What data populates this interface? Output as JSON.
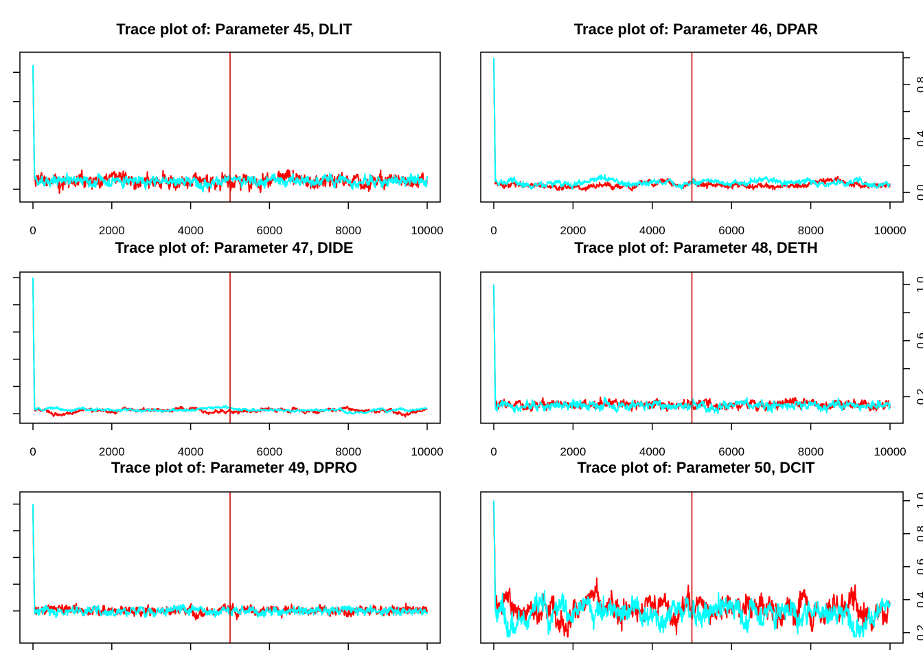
{
  "colors": {
    "chain1": "#ff0000",
    "chain2": "#00ffff",
    "vline": "#cc0000",
    "axis": "#000000"
  },
  "chart_data": [
    {
      "type": "line",
      "title": "Trace plot of: Parameter 45, DLIT",
      "xlim": [
        0,
        10000
      ],
      "ylim": [
        -0.05,
        0.9
      ],
      "xticks": [
        0,
        2000,
        4000,
        6000,
        8000,
        10000
      ],
      "xtick_labels": [
        "0",
        "2000",
        "4000",
        "6000",
        "8000",
        "10000"
      ],
      "yticks": [
        0,
        0.2,
        0.4,
        0.6,
        0.8
      ],
      "ytick_labels": [
        "",
        "",
        "",
        "",
        ""
      ],
      "ytick_side": "left",
      "vline": 5000,
      "start": 0.85,
      "series": [
        {
          "color": "chain1",
          "mean": 0.06,
          "noise": 0.045,
          "smooth": 0.15
        },
        {
          "color": "chain2",
          "mean": 0.06,
          "noise": 0.035,
          "smooth": 0.15
        }
      ]
    },
    {
      "type": "line",
      "title": "Trace plot of: Parameter 46, DPAR",
      "xlim": [
        0,
        10000
      ],
      "ylim": [
        -0.03,
        1.0
      ],
      "xticks": [
        0,
        2000,
        4000,
        6000,
        8000,
        10000
      ],
      "xtick_labels": [
        "0",
        "2000",
        "4000",
        "6000",
        "8000",
        "10000"
      ],
      "yticks": [
        0,
        0.2,
        0.4,
        0.6,
        0.8,
        1.0
      ],
      "ytick_labels": [
        "0.0",
        "",
        "0.4",
        "",
        "0.8",
        ""
      ],
      "ytick_side": "right",
      "vline": 5000,
      "start": 1.0,
      "series": [
        {
          "color": "chain1",
          "mean": 0.06,
          "noise": 0.02,
          "smooth": 0.03
        },
        {
          "color": "chain2",
          "mean": 0.075,
          "noise": 0.02,
          "smooth": 0.05
        }
      ]
    },
    {
      "type": "line",
      "title": "Trace plot of: Parameter 47, DIDE",
      "xlim": [
        0,
        10000
      ],
      "ylim": [
        -0.03,
        1.0
      ],
      "xticks": [
        0,
        2000,
        4000,
        6000,
        8000,
        10000
      ],
      "xtick_labels": [
        "0",
        "2000",
        "4000",
        "6000",
        "8000",
        "10000"
      ],
      "yticks": [
        0,
        0.2,
        0.4,
        0.6,
        0.8,
        1.0
      ],
      "ytick_labels": [
        "",
        "",
        "",
        "",
        "",
        ""
      ],
      "ytick_side": "left",
      "vline": 5000,
      "start": 1.0,
      "series": [
        {
          "color": "chain1",
          "mean": 0.03,
          "noise": 0.012,
          "smooth": 0.03
        },
        {
          "color": "chain2",
          "mean": 0.03,
          "noise": 0.01,
          "smooth": 0.03
        }
      ]
    },
    {
      "type": "line",
      "title": "Trace plot of: Parameter 48, DETH",
      "xlim": [
        0,
        10000
      ],
      "ylim": [
        0.05,
        1.05
      ],
      "xticks": [
        0,
        2000,
        4000,
        6000,
        8000,
        10000
      ],
      "xtick_labels": [
        "0",
        "2000",
        "4000",
        "6000",
        "8000",
        "10000"
      ],
      "yticks": [
        0.2,
        0.4,
        0.6,
        0.8,
        1.0
      ],
      "ytick_labels": [
        "0.2",
        "",
        "0.6",
        "",
        "1.0"
      ],
      "ytick_side": "right",
      "vline": 5000,
      "start": 1.0,
      "series": [
        {
          "color": "chain1",
          "mean": 0.145,
          "noise": 0.03,
          "smooth": 0.15
        },
        {
          "color": "chain2",
          "mean": 0.14,
          "noise": 0.03,
          "smooth": 0.15
        }
      ]
    },
    {
      "type": "line",
      "title": "Trace plot of: Parameter 49, DPRO",
      "xlim": [
        0,
        10000
      ],
      "ylim": [
        0.0,
        1.05
      ],
      "xticks": [
        0,
        2000,
        4000,
        6000,
        8000,
        10000
      ],
      "xtick_labels": [
        "",
        "",
        "",
        "",
        "",
        ""
      ],
      "yticks": [
        0.2,
        0.4,
        0.6,
        0.8,
        1.0
      ],
      "ytick_labels": [
        "",
        "",
        "",
        "",
        ""
      ],
      "ytick_side": "left",
      "vline": 5000,
      "start": 1.0,
      "series": [
        {
          "color": "chain1",
          "mean": 0.205,
          "noise": 0.035,
          "smooth": 0.15
        },
        {
          "color": "chain2",
          "mean": 0.2,
          "noise": 0.03,
          "smooth": 0.15
        }
      ]
    },
    {
      "type": "line",
      "title": "Trace plot of: Parameter 50, DCIT",
      "xlim": [
        0,
        10000
      ],
      "ylim": [
        0.17,
        1.02
      ],
      "xticks": [
        0,
        2000,
        4000,
        6000,
        8000,
        10000
      ],
      "xtick_labels": [
        "",
        "",
        "",
        "",
        "",
        ""
      ],
      "yticks": [
        0.2,
        0.4,
        0.6,
        0.8,
        1.0
      ],
      "ytick_labels": [
        "0.2",
        "0.4",
        "0.6",
        "0.8",
        "1.0"
      ],
      "ytick_side": "right",
      "vline": 5000,
      "start": 1.0,
      "series": [
        {
          "color": "chain1",
          "mean": 0.36,
          "noise": 0.07,
          "smooth": 0.07
        },
        {
          "color": "chain2",
          "mean": 0.34,
          "noise": 0.07,
          "smooth": 0.07
        }
      ]
    }
  ]
}
